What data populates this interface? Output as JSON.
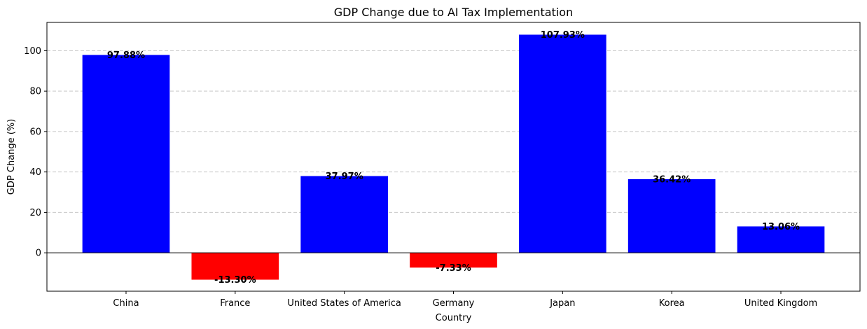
{
  "chart_data": {
    "type": "bar",
    "title": "GDP Change due to AI Tax Implementation",
    "xlabel": "Country",
    "ylabel": "GDP Change (%)",
    "categories": [
      "China",
      "France",
      "United States of America",
      "Germany",
      "Japan",
      "Korea",
      "United Kingdom"
    ],
    "values": [
      97.88,
      -13.3,
      37.97,
      -7.33,
      107.93,
      36.42,
      13.06
    ],
    "value_labels": [
      "97.88%",
      "-13.30%",
      "37.97%",
      "-7.33%",
      "107.93%",
      "36.42%",
      "13.06%"
    ],
    "ylim": [
      -19,
      114
    ],
    "yticks": [
      0,
      20,
      40,
      60,
      80,
      100
    ],
    "ytick_labels": [
      "0",
      "20",
      "40",
      "60",
      "80",
      "100"
    ],
    "grid": "y-dashed",
    "colors": {
      "positive": "#0000ff",
      "negative": "#ff0000",
      "grid": "#c8c8c8",
      "axis": "#000000"
    }
  }
}
